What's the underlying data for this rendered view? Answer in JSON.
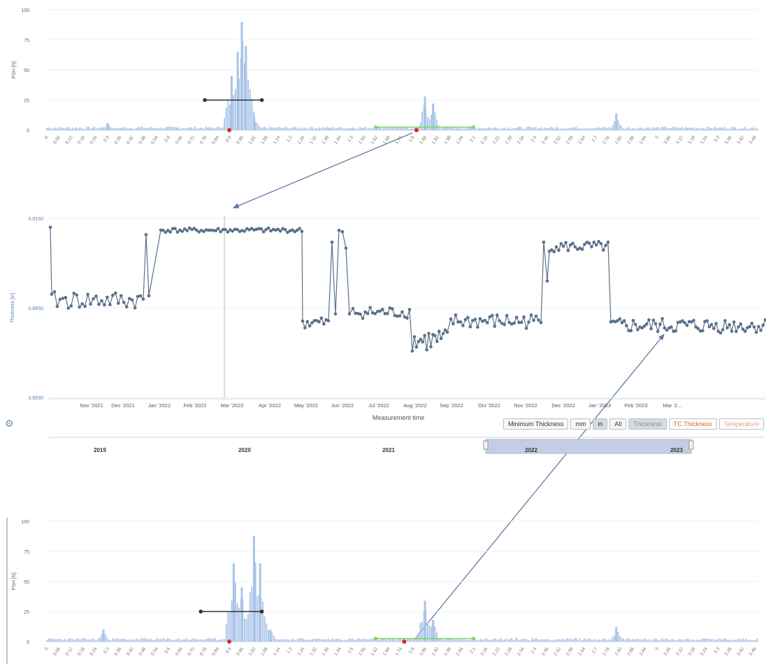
{
  "colors": {
    "spectrum": "#a9c3e8",
    "thickness_line": "#5a708a",
    "arrow": "#5f7aa0",
    "green_marker": "#78d860",
    "red_marker": "#d42a2a",
    "black_bar": "#333333",
    "navigator_fill": "#c5cde4"
  },
  "top_spectrum": {
    "y_axis_label": "PSH [N]",
    "y_ticks": [
      "100",
      "75",
      "50",
      "25",
      "0"
    ],
    "x_tick_labels": [
      "0",
      "0.06",
      "0.12",
      "0.18",
      "0.24",
      "0.3",
      "0.36",
      "0.42",
      "0.48",
      "0.54",
      "0.6",
      "0.66",
      "0.72",
      "0.78",
      "0.84",
      "0.9",
      "0.96",
      "1.02",
      "1.08",
      "1.14",
      "1.2",
      "1.26",
      "1.32",
      "1.38",
      "1.44",
      "1.5",
      "1.56",
      "1.62",
      "1.68",
      "1.74",
      "1.8",
      "1.86",
      "1.92",
      "1.98",
      "2.04",
      "2.1",
      "2.16",
      "2.22",
      "2.28",
      "2.34",
      "2.4",
      "2.46",
      "2.52",
      "2.58",
      "2.64",
      "2.7",
      "2.76",
      "2.82",
      "2.88",
      "2.94",
      "3",
      "3.06",
      "3.12",
      "3.18",
      "3.24",
      "3.3",
      "3.36",
      "3.42",
      "3.48"
    ]
  },
  "thickness_chart": {
    "y_axis_label": "Thickness [in]",
    "y_ticks": [
      "0.9150",
      "0.8850",
      "0.8550"
    ],
    "x_axis_label": "Measurement time",
    "x_tick_labels": [
      "Nov '2021",
      "Dec '2021",
      "Jan '2022",
      "Feb '2022",
      "Mar '2022",
      "Apr '2022",
      "May '2022",
      "Jun '2022",
      "Jul '2022",
      "Aug '2022",
      "Sep '2022",
      "Oct '2022",
      "Nov '2022",
      "Dec '2022",
      "Jan '2023",
      "Feb '2023",
      "Mar '2..."
    ],
    "buttons": {
      "minimum": "Minimum Thickness",
      "mm": "mm",
      "in": "in",
      "all": "All",
      "thickness": "Thickness",
      "tc": "TC Thickness",
      "temp": "Temperature"
    },
    "navigator_years": [
      "2019",
      "2020",
      "2021",
      "2022",
      "2023"
    ]
  },
  "bottom_spectrum": {
    "y_axis_label": "PSH [N]",
    "y_ticks": [
      "100",
      "75",
      "50",
      "25",
      "0"
    ]
  },
  "chart_data": [
    {
      "type": "bar",
      "name_ref": "top_spectrum",
      "xlabel": "",
      "ylabel": "PSH [N]",
      "xlim": [
        0,
        3.5
      ],
      "ylim": [
        0,
        100
      ],
      "peaks": [
        {
          "x": 0.91,
          "y": 45
        },
        {
          "x": 0.94,
          "y": 65
        },
        {
          "x": 0.96,
          "y": 90
        },
        {
          "x": 0.98,
          "y": 70
        },
        {
          "x": 1.02,
          "y": 12
        },
        {
          "x": 1.86,
          "y": 28
        },
        {
          "x": 1.9,
          "y": 22
        },
        {
          "x": 2.8,
          "y": 14
        },
        {
          "x": 0.3,
          "y": 6
        }
      ],
      "black_range": [
        0.78,
        1.06
      ],
      "black_level": 25,
      "green_range": [
        1.62,
        2.1
      ],
      "red_points": [
        0.9,
        1.82
      ]
    },
    {
      "type": "line",
      "name_ref": "thickness_chart",
      "ylabel": "Thickness [in]",
      "xlabel": "Measurement time",
      "ylim": [
        0.855,
        0.915
      ],
      "segments": [
        {
          "from": "Oct '2021",
          "to": "Jan '2022",
          "level": 0.889,
          "note_level": "low"
        },
        {
          "from": "Jan '2022",
          "to": "Apr '2022",
          "level": 0.911
        },
        {
          "from": "Apr '2022",
          "to": "Jun '2022",
          "level": 0.881
        },
        {
          "from": "May '2022",
          "to": "May '2022",
          "level": 0.912
        },
        {
          "from": "Jun '2022",
          "to": "Jul '2022",
          "level": 0.883
        },
        {
          "from": "Jul '2022",
          "to": "Oct '2022",
          "level": 0.88
        },
        {
          "from": "Oct '2022",
          "to": "Nov '2022",
          "level": 0.906
        },
        {
          "from": "Nov '2022",
          "to": "Mar '2023",
          "level": 0.879
        }
      ]
    },
    {
      "type": "bar",
      "name_ref": "bottom_spectrum",
      "ylabel": "PSH [N]",
      "xlim": [
        0,
        3.5
      ],
      "ylim": [
        0,
        100
      ],
      "peaks": [
        {
          "x": 0.92,
          "y": 65
        },
        {
          "x": 0.96,
          "y": 45
        },
        {
          "x": 1.02,
          "y": 88
        },
        {
          "x": 1.05,
          "y": 65
        },
        {
          "x": 1.1,
          "y": 10
        },
        {
          "x": 1.86,
          "y": 34
        },
        {
          "x": 1.9,
          "y": 18
        },
        {
          "x": 2.8,
          "y": 12
        },
        {
          "x": 0.28,
          "y": 10
        }
      ],
      "black_range": [
        0.76,
        1.06
      ],
      "black_level": 25,
      "green_range": [
        1.62,
        2.1
      ],
      "red_points": [
        0.9,
        1.76
      ]
    }
  ]
}
